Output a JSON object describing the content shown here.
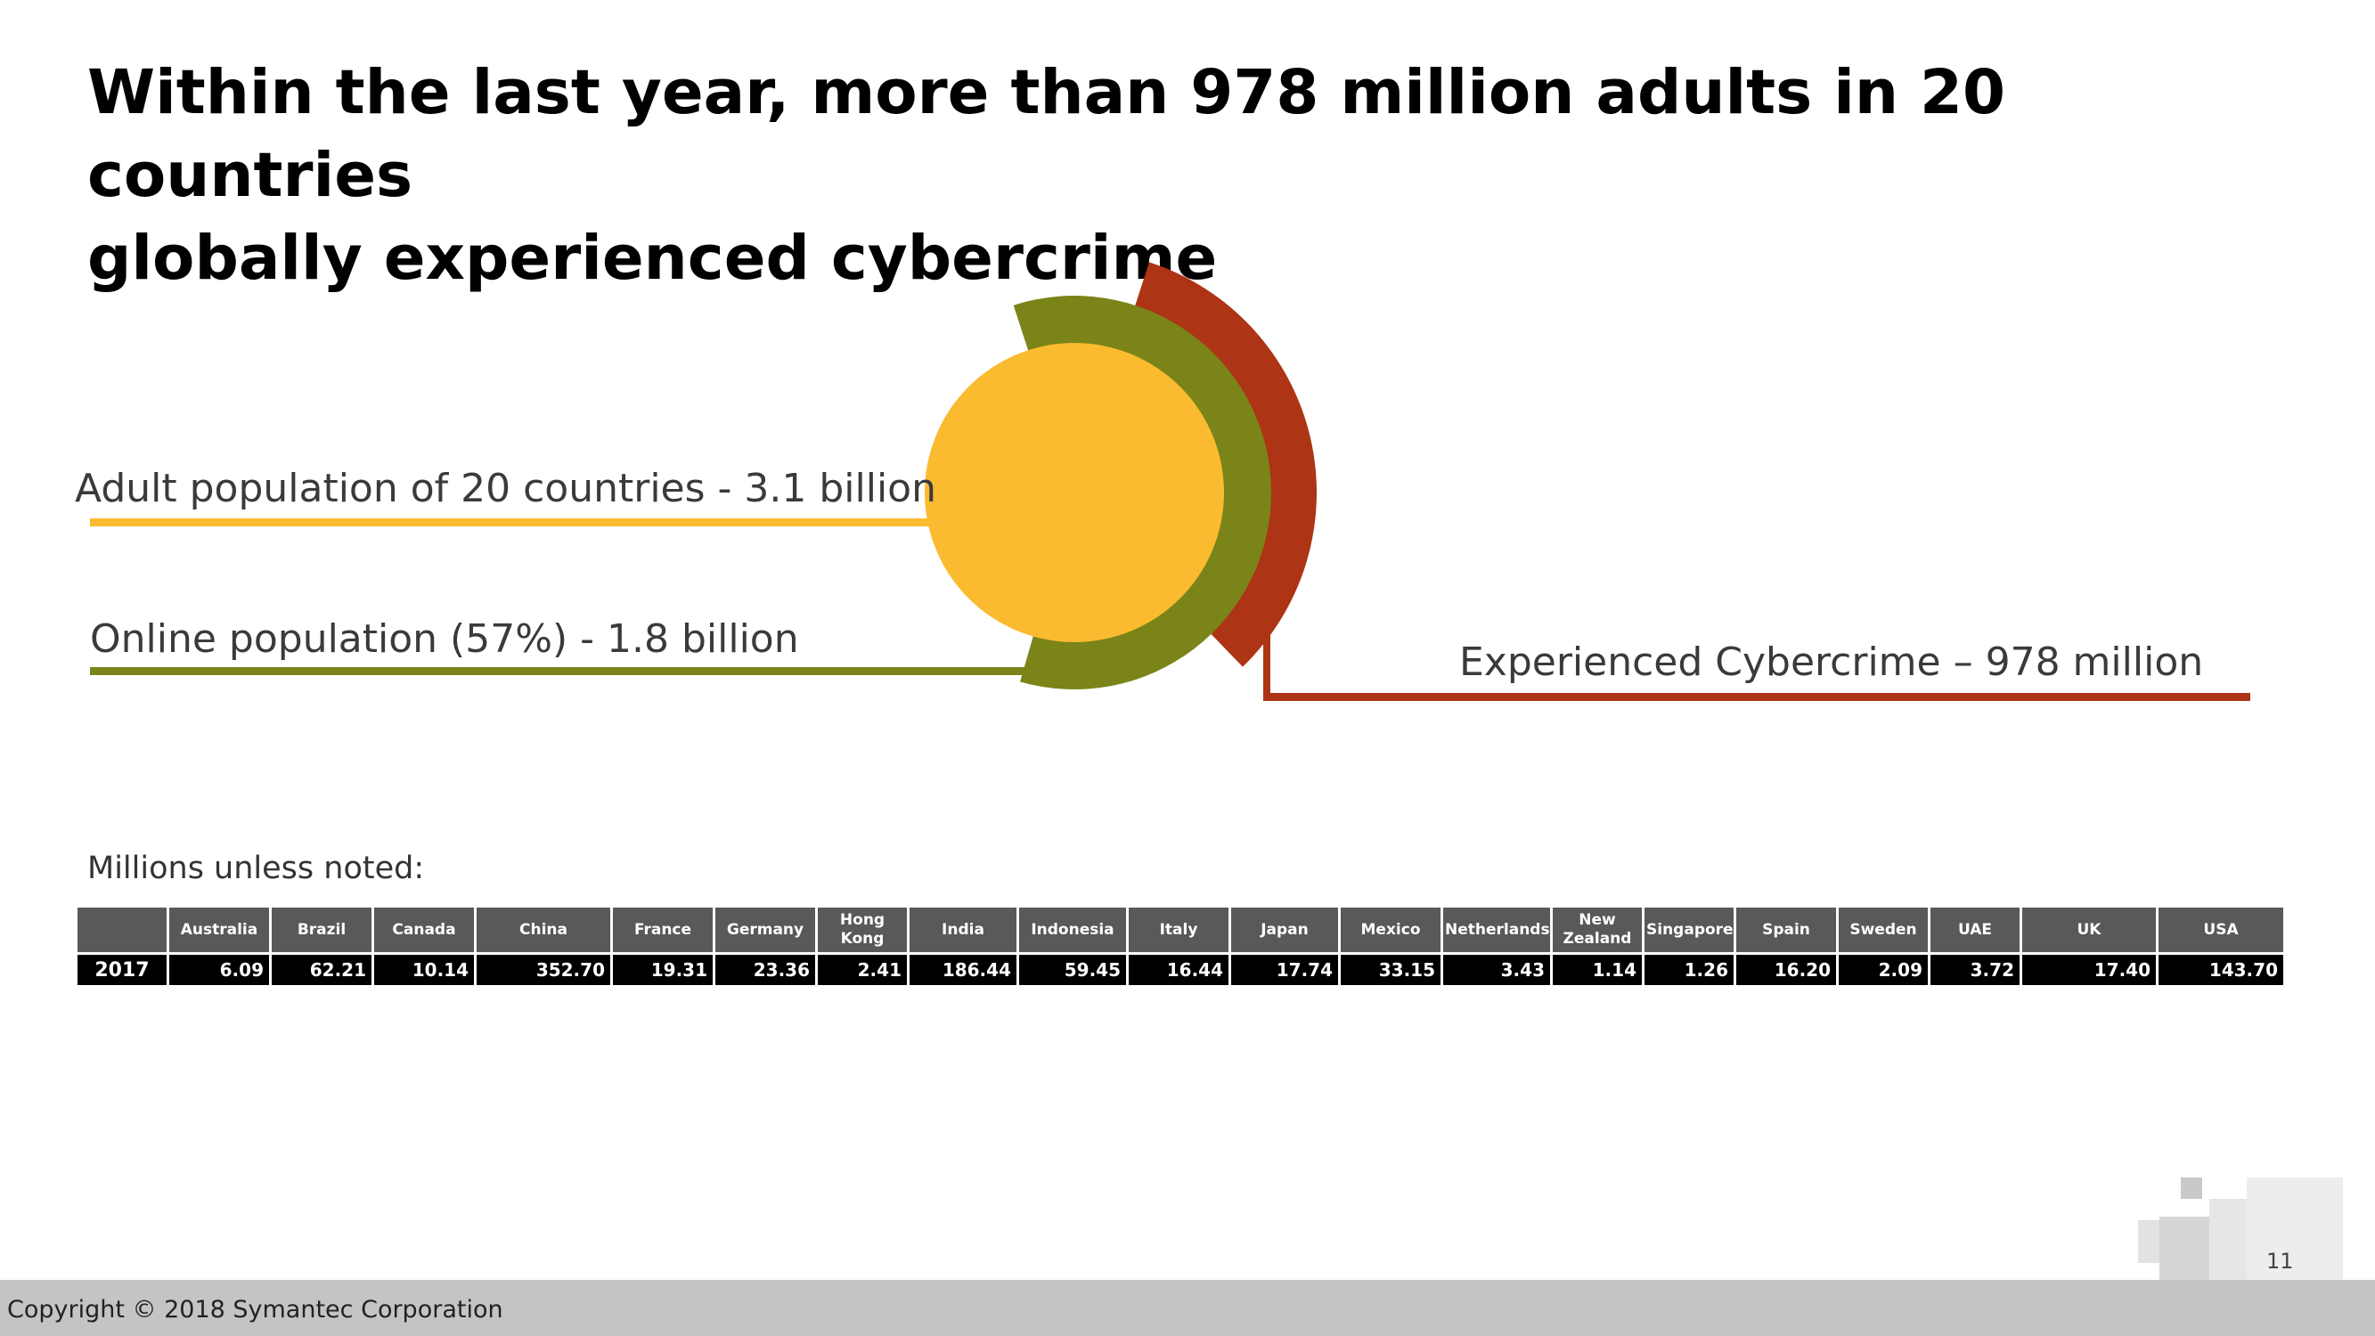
{
  "slide": {
    "title_line1": "Within the last year, more than 978 million adults in 20 countries",
    "title_line2": "globally experienced cybercrime",
    "units_note": "Millions unless noted:",
    "copyright": "Copyright © 2018 Symantec Corporation",
    "page_number": "11"
  },
  "chart_data": [
    {
      "type": "pie",
      "labels": [
        "Adult population of 20 countries - 3.1 billion",
        "Online population (57%) - 1.8 billion",
        "Experienced Cybercrime – 978 million"
      ],
      "values": [
        3100,
        1800,
        978
      ],
      "units": "millions of adults",
      "colors": [
        "#fbbb30",
        "#7a8418",
        "#ad3414"
      ]
    },
    {
      "type": "table",
      "row_header": "2017",
      "columns": [
        "Australia",
        "Brazil",
        "Canada",
        "China",
        "France",
        "Germany",
        "Hong Kong",
        "India",
        "Indonesia",
        "Italy",
        "Japan",
        "Mexico",
        "Netherlands",
        "New Zealand",
        "Singapore",
        "Spain",
        "Sweden",
        "UAE",
        "UK",
        "USA"
      ],
      "values": [
        "6.09",
        "62.21",
        "10.14",
        "352.70",
        "19.31",
        "23.36",
        "2.41",
        "186.44",
        "59.45",
        "16.44",
        "17.74",
        "33.15",
        "3.43",
        "1.14",
        "1.26",
        "16.20",
        "2.09",
        "3.72",
        "17.40",
        "143.70"
      ]
    }
  ],
  "colors": {
    "adult": "#fbbb30",
    "online": "#7a8418",
    "cybercrime": "#ad3414",
    "table_header_bg": "#595959",
    "table_row_bg": "#000000",
    "footer_bg": "#c4c4c4"
  }
}
